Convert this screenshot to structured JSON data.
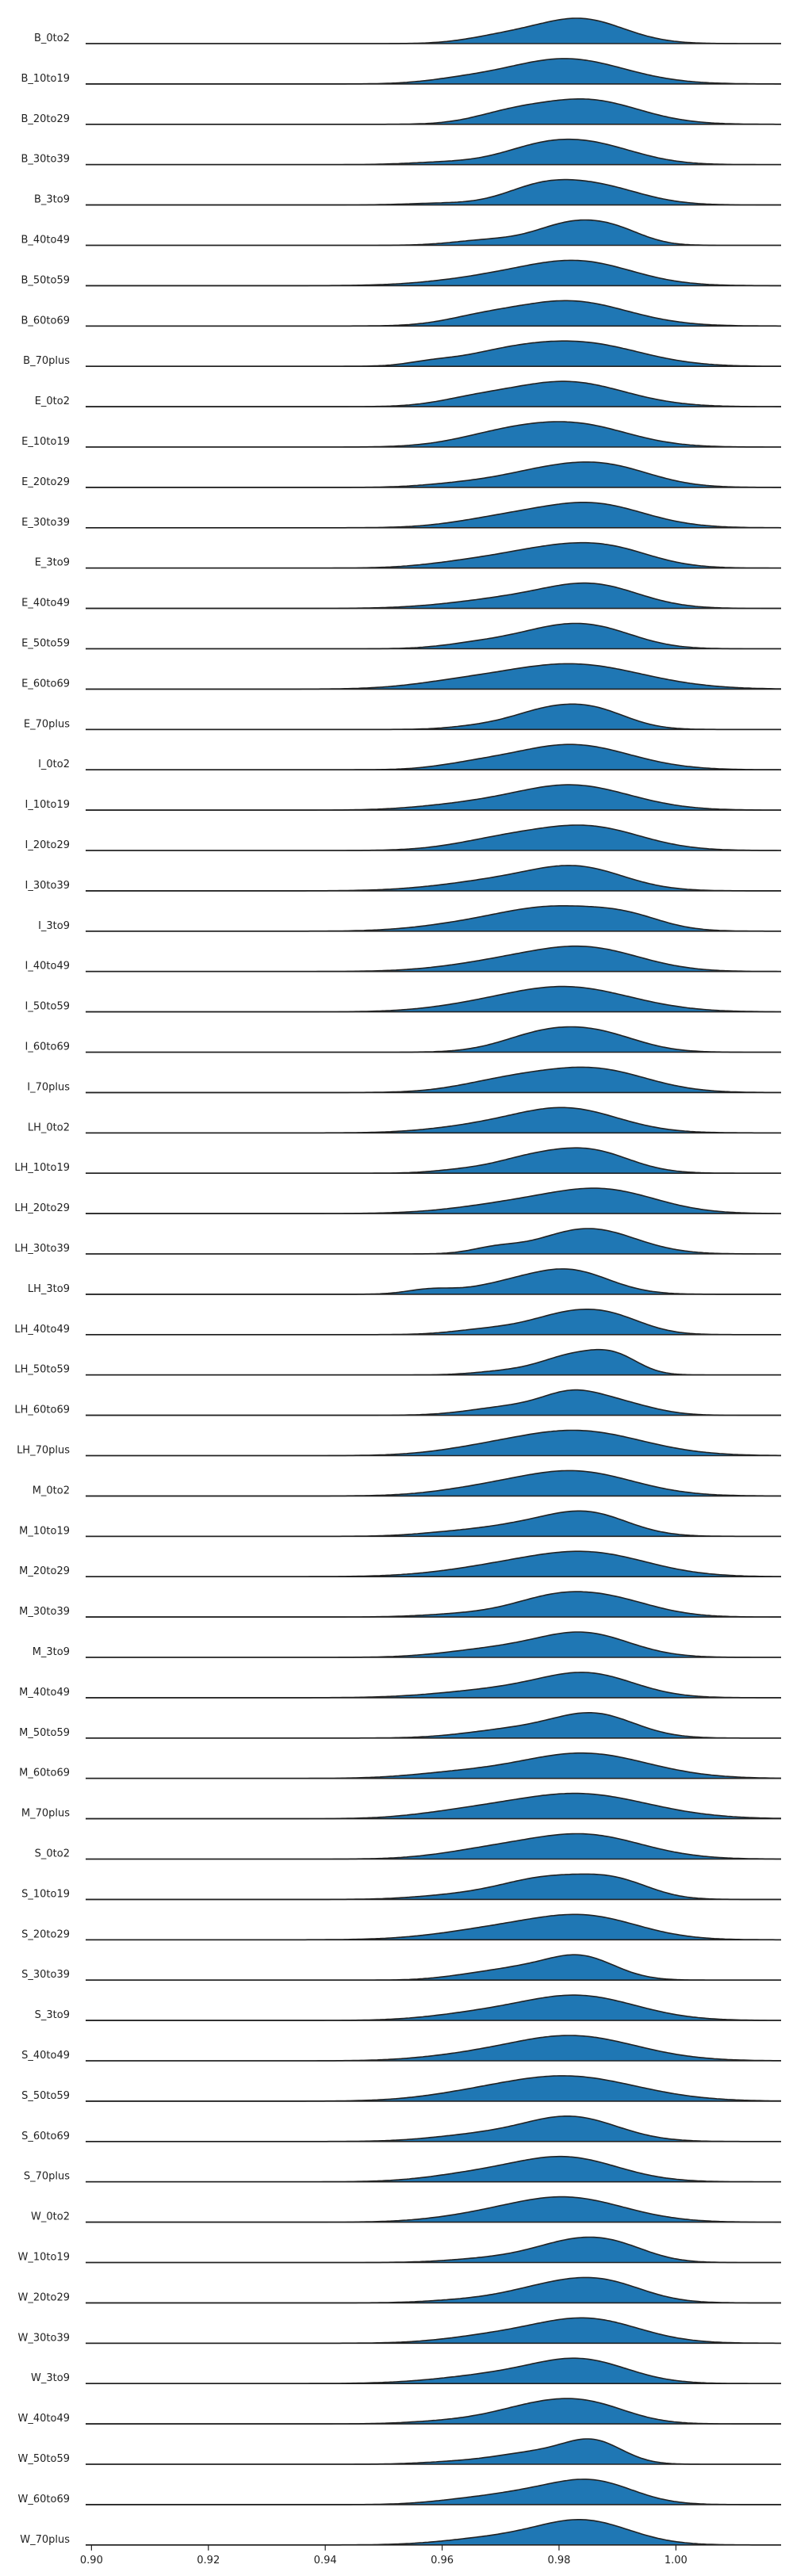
{
  "chart_data": {
    "type": "area",
    "title": "",
    "xlabel": "",
    "ylabel": "",
    "xlim": [
      0.899,
      1.018
    ],
    "grid": false,
    "legend": "none",
    "fill_color": "#1f77b4",
    "stroke_color": "#222222",
    "x_ticks": [
      {
        "value": 0.9,
        "label": "0.90"
      },
      {
        "value": 0.92,
        "label": "0.92"
      },
      {
        "value": 0.94,
        "label": "0.94"
      },
      {
        "value": 0.96,
        "label": "0.96"
      },
      {
        "value": 0.98,
        "label": "0.98"
      },
      {
        "value": 1.0,
        "label": "1.00"
      }
    ],
    "series": [
      {
        "name": "B_0to2",
        "peaks": [
          [
            0.9835,
            1.0,
            0.0075
          ],
          [
            0.97,
            0.25,
            0.006
          ]
        ]
      },
      {
        "name": "B_10to19",
        "peaks": [
          [
            0.981,
            1.0,
            0.01
          ],
          [
            0.963,
            0.12,
            0.006
          ]
        ]
      },
      {
        "name": "B_20to29",
        "peaks": [
          [
            0.9845,
            1.0,
            0.009
          ],
          [
            0.971,
            0.3,
            0.006
          ]
        ]
      },
      {
        "name": "B_30to39",
        "peaks": [
          [
            0.9855,
            0.85,
            0.008
          ],
          [
            0.976,
            0.55,
            0.007
          ],
          [
            0.96,
            0.1,
            0.006
          ]
        ]
      },
      {
        "name": "B_3to9",
        "peaks": [
          [
            0.9855,
            0.92,
            0.008
          ],
          [
            0.976,
            0.55,
            0.006
          ],
          [
            0.96,
            0.08,
            0.006
          ]
        ]
      },
      {
        "name": "B_40to49",
        "peaks": [
          [
            0.982,
            1.0,
            0.006
          ],
          [
            0.99,
            0.55,
            0.005
          ],
          [
            0.968,
            0.25,
            0.006
          ]
        ]
      },
      {
        "name": "B_50to59",
        "peaks": [
          [
            0.984,
            0.88,
            0.009
          ],
          [
            0.97,
            0.35,
            0.01
          ]
        ]
      },
      {
        "name": "B_60to69",
        "peaks": [
          [
            0.9815,
            0.95,
            0.01
          ],
          [
            0.966,
            0.2,
            0.006
          ]
        ]
      },
      {
        "name": "B_70plus",
        "peaks": [
          [
            0.984,
            0.8,
            0.01
          ],
          [
            0.97,
            0.35,
            0.008
          ],
          [
            0.958,
            0.1,
            0.004
          ]
        ]
      },
      {
        "name": "E_0to2",
        "peaks": [
          [
            0.981,
            1.0,
            0.01
          ],
          [
            0.965,
            0.2,
            0.006
          ]
        ]
      },
      {
        "name": "E_10to19",
        "peaks": [
          [
            0.983,
            0.9,
            0.009
          ],
          [
            0.97,
            0.45,
            0.008
          ]
        ]
      },
      {
        "name": "E_20to29",
        "peaks": [
          [
            0.988,
            0.95,
            0.008
          ],
          [
            0.976,
            0.6,
            0.008
          ],
          [
            0.962,
            0.12,
            0.006
          ]
        ]
      },
      {
        "name": "E_30to39",
        "peaks": [
          [
            0.9855,
            1.0,
            0.009
          ],
          [
            0.97,
            0.35,
            0.008
          ]
        ]
      },
      {
        "name": "E_3to9",
        "peaks": [
          [
            0.98,
            0.9,
            0.01
          ],
          [
            0.99,
            0.4,
            0.007
          ],
          [
            0.963,
            0.15,
            0.007
          ]
        ]
      },
      {
        "name": "E_40to49",
        "peaks": [
          [
            0.986,
            1.0,
            0.008
          ],
          [
            0.972,
            0.45,
            0.01
          ]
        ]
      },
      {
        "name": "E_50to59",
        "peaks": [
          [
            0.987,
            0.85,
            0.007
          ],
          [
            0.978,
            0.75,
            0.007
          ],
          [
            0.966,
            0.25,
            0.006
          ]
        ]
      },
      {
        "name": "E_60to69",
        "peaks": [
          [
            0.982,
            0.85,
            0.012
          ],
          [
            0.962,
            0.15,
            0.008
          ]
        ]
      },
      {
        "name": "E_70plus",
        "peaks": [
          [
            0.986,
            1.0,
            0.006
          ],
          [
            0.977,
            0.85,
            0.006
          ],
          [
            0.966,
            0.15,
            0.005
          ]
        ]
      },
      {
        "name": "I_0to2",
        "peaks": [
          [
            0.982,
            1.0,
            0.01
          ],
          [
            0.965,
            0.15,
            0.006
          ]
        ]
      },
      {
        "name": "I_10to19",
        "peaks": [
          [
            0.982,
            0.9,
            0.01
          ],
          [
            0.963,
            0.15,
            0.008
          ]
        ]
      },
      {
        "name": "I_20to29",
        "peaks": [
          [
            0.985,
            0.95,
            0.009
          ],
          [
            0.97,
            0.4,
            0.008
          ]
        ]
      },
      {
        "name": "I_30to39",
        "peaks": [
          [
            0.9835,
            0.95,
            0.008
          ],
          [
            0.97,
            0.45,
            0.01
          ]
        ]
      },
      {
        "name": "I_3to9",
        "peaks": [
          [
            0.979,
            0.9,
            0.01
          ],
          [
            0.992,
            0.35,
            0.006
          ],
          [
            0.962,
            0.15,
            0.008
          ]
        ]
      },
      {
        "name": "I_40to49",
        "peaks": [
          [
            0.9855,
            0.88,
            0.009
          ],
          [
            0.972,
            0.45,
            0.01
          ]
        ]
      },
      {
        "name": "I_50to59",
        "peaks": [
          [
            0.981,
            0.95,
            0.011
          ],
          [
            0.964,
            0.1,
            0.008
          ]
        ]
      },
      {
        "name": "I_60to69",
        "peaks": [
          [
            0.987,
            0.85,
            0.007
          ],
          [
            0.977,
            0.85,
            0.007
          ]
        ]
      },
      {
        "name": "I_70plus",
        "peaks": [
          [
            0.986,
            0.95,
            0.009
          ],
          [
            0.971,
            0.45,
            0.008
          ]
        ]
      },
      {
        "name": "LH_0to2",
        "peaks": [
          [
            0.981,
            1.0,
            0.009
          ],
          [
            0.965,
            0.2,
            0.008
          ]
        ]
      },
      {
        "name": "LH_10to19",
        "peaks": [
          [
            0.985,
            1.0,
            0.007
          ],
          [
            0.974,
            0.5,
            0.006
          ],
          [
            0.963,
            0.12,
            0.005
          ]
        ]
      },
      {
        "name": "LH_20to29",
        "peaks": [
          [
            0.988,
            1.0,
            0.009
          ],
          [
            0.973,
            0.45,
            0.01
          ]
        ]
      },
      {
        "name": "LH_30to39",
        "peaks": [
          [
            0.985,
            1.0,
            0.008
          ],
          [
            0.969,
            0.2,
            0.004
          ]
        ]
      },
      {
        "name": "LH_3to9",
        "peaks": [
          [
            0.9815,
            1.0,
            0.007
          ],
          [
            0.958,
            0.2,
            0.004
          ],
          [
            0.97,
            0.3,
            0.006
          ]
        ]
      },
      {
        "name": "LH_40to49",
        "peaks": [
          [
            0.9885,
            1.0,
            0.006
          ],
          [
            0.98,
            0.85,
            0.006
          ],
          [
            0.968,
            0.3,
            0.006
          ]
        ]
      },
      {
        "name": "LH_50to59",
        "peaks": [
          [
            0.983,
            1.0,
            0.006
          ],
          [
            0.99,
            0.6,
            0.004
          ],
          [
            0.97,
            0.15,
            0.005
          ]
        ]
      },
      {
        "name": "LH_60to69",
        "peaks": [
          [
            0.982,
            1.0,
            0.005
          ],
          [
            0.99,
            0.7,
            0.006
          ],
          [
            0.972,
            0.5,
            0.007
          ]
        ]
      },
      {
        "name": "LH_70plus",
        "peaks": [
          [
            0.983,
            0.9,
            0.011
          ],
          [
            0.966,
            0.15,
            0.008
          ]
        ]
      },
      {
        "name": "M_0to2",
        "peaks": [
          [
            0.9825,
            0.95,
            0.01
          ],
          [
            0.966,
            0.2,
            0.008
          ]
        ]
      },
      {
        "name": "M_10to19",
        "peaks": [
          [
            0.985,
            1.0,
            0.007
          ],
          [
            0.973,
            0.45,
            0.008
          ],
          [
            0.96,
            0.1,
            0.006
          ]
        ]
      },
      {
        "name": "M_20to29",
        "peaks": [
          [
            0.9855,
            0.9,
            0.01
          ],
          [
            0.97,
            0.35,
            0.01
          ]
        ]
      },
      {
        "name": "M_30to39",
        "peaks": [
          [
            0.988,
            0.9,
            0.008
          ],
          [
            0.978,
            0.7,
            0.007
          ],
          [
            0.964,
            0.15,
            0.007
          ]
        ]
      },
      {
        "name": "M_3to9",
        "peaks": [
          [
            0.984,
            1.0,
            0.008
          ],
          [
            0.968,
            0.3,
            0.008
          ]
        ]
      },
      {
        "name": "M_40to49",
        "peaks": [
          [
            0.985,
            1.0,
            0.008
          ],
          [
            0.97,
            0.35,
            0.01
          ]
        ]
      },
      {
        "name": "M_50to59",
        "peaks": [
          [
            0.986,
            1.0,
            0.007
          ],
          [
            0.972,
            0.35,
            0.008
          ]
        ]
      },
      {
        "name": "M_60to69",
        "peaks": [
          [
            0.984,
            0.85,
            0.011
          ],
          [
            0.962,
            0.15,
            0.008
          ]
        ]
      },
      {
        "name": "M_70plus",
        "peaks": [
          [
            0.983,
            0.85,
            0.012
          ],
          [
            0.963,
            0.15,
            0.008
          ]
        ]
      },
      {
        "name": "S_0to2",
        "peaks": [
          [
            0.984,
            0.9,
            0.01
          ],
          [
            0.967,
            0.25,
            0.008
          ]
        ]
      },
      {
        "name": "S_10to19",
        "peaks": [
          [
            0.978,
            0.9,
            0.008
          ],
          [
            0.99,
            0.65,
            0.006
          ],
          [
            0.962,
            0.15,
            0.007
          ]
        ]
      },
      {
        "name": "S_20to29",
        "peaks": [
          [
            0.985,
            0.9,
            0.009
          ],
          [
            0.97,
            0.45,
            0.01
          ]
        ]
      },
      {
        "name": "S_30to39",
        "peaks": [
          [
            0.9835,
            1.0,
            0.006
          ],
          [
            0.972,
            0.4,
            0.006
          ],
          [
            0.963,
            0.1,
            0.005
          ]
        ]
      },
      {
        "name": "S_3to9",
        "peaks": [
          [
            0.983,
            1.0,
            0.01
          ],
          [
            0.965,
            0.2,
            0.008
          ]
        ]
      },
      {
        "name": "S_40to49",
        "peaks": [
          [
            0.982,
            1.0,
            0.011
          ],
          [
            0.963,
            0.12,
            0.008
          ]
        ]
      },
      {
        "name": "S_50to59",
        "peaks": [
          [
            0.981,
            0.9,
            0.012
          ],
          [
            0.963,
            0.1,
            0.008
          ]
        ]
      },
      {
        "name": "S_60to69",
        "peaks": [
          [
            0.982,
            1.0,
            0.008
          ],
          [
            0.966,
            0.25,
            0.008
          ]
        ]
      },
      {
        "name": "S_70plus",
        "peaks": [
          [
            0.981,
            0.95,
            0.009
          ],
          [
            0.965,
            0.25,
            0.008
          ]
        ]
      },
      {
        "name": "W_0to2",
        "peaks": [
          [
            0.981,
            1.0,
            0.01
          ],
          [
            0.965,
            0.15,
            0.008
          ]
        ]
      },
      {
        "name": "W_10to19",
        "peaks": [
          [
            0.982,
            1.0,
            0.007
          ],
          [
            0.99,
            0.65,
            0.006
          ],
          [
            0.968,
            0.2,
            0.007
          ]
        ]
      },
      {
        "name": "W_20to29",
        "peaks": [
          [
            0.988,
            0.95,
            0.007
          ],
          [
            0.978,
            0.8,
            0.008
          ],
          [
            0.962,
            0.1,
            0.006
          ]
        ]
      },
      {
        "name": "W_30to39",
        "peaks": [
          [
            0.9845,
            1.0,
            0.009
          ],
          [
            0.968,
            0.25,
            0.008
          ]
        ]
      },
      {
        "name": "W_3to9",
        "peaks": [
          [
            0.984,
            1.0,
            0.008
          ],
          [
            0.97,
            0.4,
            0.01
          ]
        ]
      },
      {
        "name": "W_40to49",
        "peaks": [
          [
            0.985,
            0.95,
            0.007
          ],
          [
            0.975,
            0.7,
            0.007
          ],
          [
            0.962,
            0.15,
            0.007
          ]
        ]
      },
      {
        "name": "W_50to59",
        "peaks": [
          [
            0.986,
            1.0,
            0.005
          ],
          [
            0.976,
            0.55,
            0.007
          ],
          [
            0.962,
            0.1,
            0.006
          ]
        ]
      },
      {
        "name": "W_60to69",
        "peaks": [
          [
            0.986,
            1.0,
            0.007
          ],
          [
            0.974,
            0.5,
            0.008
          ],
          [
            0.962,
            0.1,
            0.006
          ]
        ]
      },
      {
        "name": "W_70plus",
        "peaks": [
          [
            0.984,
            1.0,
            0.008
          ],
          [
            0.968,
            0.25,
            0.008
          ]
        ]
      }
    ]
  }
}
